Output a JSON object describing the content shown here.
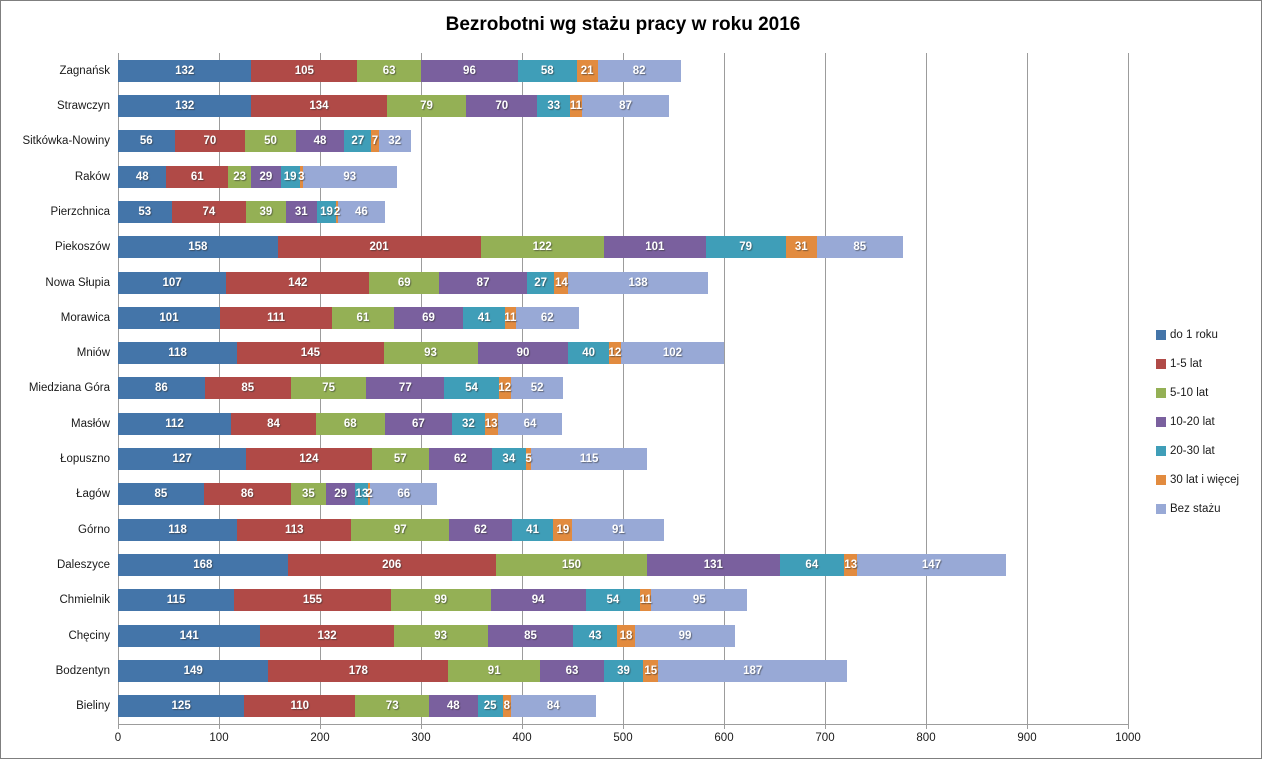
{
  "title": "Bezrobotni wg stażu pracy w roku 2016",
  "chart_data": {
    "type": "bar",
    "stacked": true,
    "orientation": "horizontal",
    "title": "Bezrobotni wg stażu pracy w roku 2016",
    "xlabel": "",
    "ylabel": "",
    "xlim": [
      0,
      1000
    ],
    "xticks": [
      0,
      100,
      200,
      300,
      400,
      500,
      600,
      700,
      800,
      900,
      1000
    ],
    "grid": true,
    "legend_position": "right",
    "categories": [
      "Zagnańsk",
      "Strawczyn",
      "Sitkówka-Nowiny",
      "Raków",
      "Pierzchnica",
      "Piekoszów",
      "Nowa Słupia",
      "Morawica",
      "Mniów",
      "Miedziana Góra",
      "Masłów",
      "Łopuszno",
      "Łagów",
      "Górno",
      "Daleszyce",
      "Chmielnik",
      "Chęciny",
      "Bodzentyn",
      "Bieliny"
    ],
    "series": [
      {
        "name": "do 1 roku",
        "color": "#4475A9",
        "values": [
          132,
          132,
          56,
          48,
          53,
          158,
          107,
          101,
          118,
          86,
          112,
          127,
          85,
          118,
          168,
          115,
          141,
          149,
          125
        ]
      },
      {
        "name": "1-5 lat",
        "color": "#B04A47",
        "values": [
          105,
          134,
          70,
          61,
          74,
          201,
          142,
          111,
          145,
          85,
          84,
          124,
          86,
          113,
          206,
          155,
          132,
          178,
          110
        ]
      },
      {
        "name": "5-10 lat",
        "color": "#94B055",
        "values": [
          63,
          79,
          50,
          23,
          39,
          122,
          69,
          61,
          93,
          75,
          68,
          57,
          35,
          97,
          150,
          99,
          93,
          91,
          73
        ]
      },
      {
        "name": "10-20 lat",
        "color": "#7A609E",
        "values": [
          96,
          70,
          48,
          29,
          31,
          101,
          87,
          69,
          90,
          77,
          67,
          62,
          29,
          62,
          131,
          94,
          85,
          63,
          48
        ]
      },
      {
        "name": "20-30 lat",
        "color": "#3F9EB8",
        "values": [
          58,
          33,
          27,
          19,
          19,
          79,
          27,
          41,
          40,
          54,
          32,
          34,
          13,
          41,
          64,
          54,
          43,
          39,
          25
        ]
      },
      {
        "name": "30 lat i więcej",
        "color": "#E28B3F",
        "values": [
          21,
          11,
          7,
          3,
          2,
          31,
          14,
          11,
          12,
          12,
          13,
          5,
          2,
          19,
          13,
          11,
          18,
          15,
          8
        ]
      },
      {
        "name": "Bez stażu",
        "color": "#98A9D6",
        "values": [
          82,
          87,
          32,
          93,
          46,
          85,
          138,
          62,
          102,
          52,
          64,
          115,
          66,
          91,
          147,
          95,
          99,
          187,
          84
        ]
      }
    ],
    "colors": {
      "gridline": "#9c9c9c",
      "axis": "#9c9c9c",
      "chart_border": "#7f7f7f",
      "value_label": "#ffffff",
      "text": "#1a1a1a"
    }
  }
}
